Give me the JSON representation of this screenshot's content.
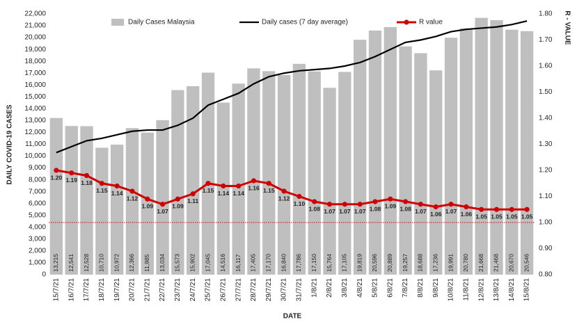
{
  "chart_data": {
    "type": "combo",
    "y_label": "DAILY COVID-19 CASES",
    "y2_label": "R - VALUE",
    "x_label": "DATE",
    "categories": [
      "15/7/21",
      "16/7/21",
      "17/7/21",
      "18/7/21",
      "19/7/21",
      "20/7/21",
      "21/7/21",
      "22/7/21",
      "23/7/21",
      "24/7/21",
      "25/7/21",
      "26/7/21",
      "27/7/21",
      "28/7/21",
      "29/7/21",
      "30/7/21",
      "31/7/21",
      "1/8/21",
      "2/8/21",
      "3/8/21",
      "4/8/21",
      "5/8/21",
      "6/8/21",
      "7/8/21",
      "8/8/21",
      "9/8/21",
      "10/8/21",
      "11/8/21",
      "12/8/21",
      "13/8/21",
      "14/8/21",
      "15/8/21"
    ],
    "series": [
      {
        "name": "Daily Cases Malaysia",
        "type": "bar",
        "color": "#bfbfbf",
        "values": [
          13215,
          12541,
          12528,
          10710,
          10972,
          12366,
          11985,
          13034,
          15573,
          15902,
          17045,
          14516,
          16117,
          17405,
          17170,
          16840,
          17786,
          17150,
          15764,
          17105,
          19819,
          20596,
          20889,
          19257,
          18688,
          17236,
          19991,
          20780,
          21668,
          21468,
          20670,
          20546
        ],
        "value_labels": [
          "13,215",
          "12,541",
          "12,528",
          "10,710",
          "10,972",
          "12,366",
          "11,985",
          "13,034",
          "15,573",
          "15,902",
          "17,045",
          "14,516",
          "16,117",
          "17,405",
          "17,170",
          "16,840",
          "17,786",
          "17,150",
          "15,764",
          "17,105",
          "19,819",
          "20,596",
          "20,889",
          "19,257",
          "18,688",
          "17,236",
          "19,991",
          "20,780",
          "21,668",
          "21,468",
          "20,670",
          "20,546"
        ]
      },
      {
        "name": "Daily cases (7 day average)",
        "type": "line",
        "color": "#000000",
        "values": [
          10300,
          10800,
          11300,
          11500,
          11800,
          12100,
          12200,
          12200,
          12600,
          13200,
          14300,
          14800,
          15300,
          16100,
          16700,
          17000,
          17200,
          17300,
          17400,
          17600,
          17900,
          18400,
          19000,
          19600,
          19800,
          20100,
          20500,
          20700,
          20800,
          20900,
          21100,
          21400
        ]
      },
      {
        "name": "R value",
        "type": "line",
        "axis": "y2",
        "color": "#d00000",
        "values": [
          1.2,
          1.19,
          1.18,
          1.15,
          1.14,
          1.12,
          1.09,
          1.07,
          1.09,
          1.11,
          1.15,
          1.14,
          1.14,
          1.16,
          1.15,
          1.12,
          1.1,
          1.08,
          1.07,
          1.07,
          1.07,
          1.08,
          1.09,
          1.08,
          1.07,
          1.06,
          1.07,
          1.06,
          1.05,
          1.05,
          1.05,
          1.05
        ],
        "value_labels": [
          "1.20",
          "1.19",
          "1.18",
          "1.15",
          "1.14",
          "1.12",
          "1.09",
          "1.07",
          "1.09",
          "1.11",
          "1.15",
          "1.14",
          "1.14",
          "1.16",
          "1.15",
          "1.12",
          "1.10",
          "1.08",
          "1.07",
          "1.07",
          "1.07",
          "1.08",
          "1.09",
          "1.08",
          "1.07",
          "1.06",
          "1.07",
          "1.06",
          "1.05",
          "1.05",
          "1.05",
          "1.05"
        ]
      }
    ],
    "ylim": [
      0,
      22000
    ],
    "yticks": [
      0,
      {
        "value": 1000,
        "label": "1,000"
      },
      {
        "value": 2000,
        "label": "2,000"
      },
      {
        "value": 3000,
        "label": "3,000"
      },
      {
        "value": 4000,
        "label": "4,000"
      },
      {
        "value": 5000,
        "label": "5,000"
      },
      {
        "value": 6000,
        "label": "6,000"
      },
      {
        "value": 7000,
        "label": "7,000"
      },
      {
        "value": 8000,
        "label": "8,000"
      },
      {
        "value": 9000,
        "label": "9,000"
      },
      {
        "value": 10000,
        "label": "10,000"
      },
      {
        "value": 11000,
        "label": "11,000"
      },
      {
        "value": 12000,
        "label": "12,000"
      },
      {
        "value": 13000,
        "label": "13,000"
      },
      {
        "value": 14000,
        "label": "14,000"
      },
      {
        "value": 15000,
        "label": "15,000"
      },
      {
        "value": 16000,
        "label": "16,000"
      },
      {
        "value": 17000,
        "label": "17,000"
      },
      {
        "value": 18000,
        "label": "18,000"
      },
      {
        "value": 19000,
        "label": "19,000"
      },
      {
        "value": 20000,
        "label": "20,000"
      },
      {
        "value": 21000,
        "label": "21,000"
      },
      {
        "value": 22000,
        "label": "22,000"
      }
    ],
    "y2lim": [
      0.8,
      1.8
    ],
    "y2ticks": [
      {
        "value": 0.8,
        "label": "0.80"
      },
      {
        "value": 0.9,
        "label": "0.90"
      },
      {
        "value": 1.0,
        "label": "1.00"
      },
      {
        "value": 1.1,
        "label": "1.10"
      },
      {
        "value": 1.2,
        "label": "1.20"
      },
      {
        "value": 1.3,
        "label": "1.30"
      },
      {
        "value": 1.4,
        "label": "1.40"
      },
      {
        "value": 1.5,
        "label": "1.50"
      },
      {
        "value": 1.6,
        "label": "1.60"
      },
      {
        "value": 1.7,
        "label": "1.70"
      },
      {
        "value": 1.8,
        "label": "1.80"
      }
    ],
    "reference_line": {
      "value": 1.0,
      "axis": "y2",
      "color": "#d00000"
    },
    "grid": false,
    "legend": "top"
  }
}
